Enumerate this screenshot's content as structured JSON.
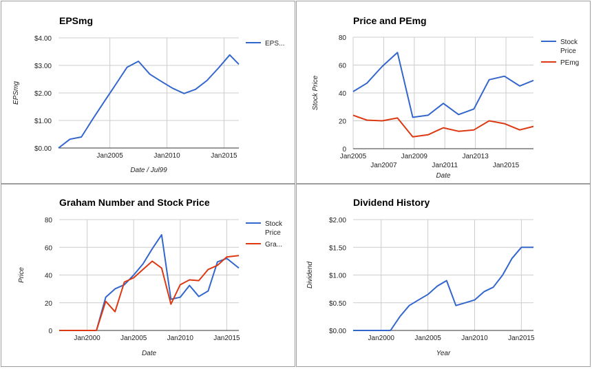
{
  "chart_data": [
    {
      "type": "line",
      "title": "EPSmg",
      "xlabel": "Date / Jul99",
      "ylabel": "EPSmg",
      "x_ticks": [
        "Jan2005",
        "Jan2010",
        "Jan2015"
      ],
      "y_ticks": [
        "$0.00",
        "$1.00",
        "$2.00",
        "$3.00",
        "$4.00"
      ],
      "xlim": [
        2000.5,
        2016.3
      ],
      "ylim": [
        0,
        4
      ],
      "grid": true,
      "legend_position": "right",
      "series": [
        {
          "name": "EPS...",
          "color": "#3366cc",
          "x": [
            2000.5,
            2001.5,
            2002.5,
            2003.5,
            2004.5,
            2005.5,
            2006.5,
            2007.5,
            2008.5,
            2009.5,
            2010.5,
            2011.5,
            2012.5,
            2013.5,
            2014.5,
            2015.5,
            2016.3
          ],
          "y": [
            0.0,
            0.32,
            0.4,
            1.05,
            1.68,
            2.3,
            2.93,
            3.15,
            2.68,
            2.42,
            2.17,
            1.98,
            2.13,
            2.45,
            2.9,
            3.38,
            3.04
          ]
        }
      ]
    },
    {
      "type": "line",
      "title": "Price and PEmg",
      "xlabel": "Date",
      "ylabel": "Stock Price",
      "x_ticks": [
        "Jan2005",
        "Jan2007",
        "Jan2009",
        "Jan2011",
        "Jan2013",
        "Jan2015"
      ],
      "y_ticks": [
        "0",
        "20",
        "40",
        "60",
        "80"
      ],
      "xlim": [
        2005,
        2016.8
      ],
      "ylim": [
        0,
        80
      ],
      "grid": true,
      "legend_position": "right",
      "series": [
        {
          "name": "Stock Price",
          "color": "#3366cc",
          "x": [
            2005,
            2005.9,
            2006.9,
            2007.9,
            2008.9,
            2009.9,
            2010.9,
            2011.9,
            2012.9,
            2013.9,
            2014.9,
            2015.9,
            2016.8
          ],
          "y": [
            41,
            47,
            59,
            69,
            22.5,
            24,
            32.5,
            24.5,
            28.5,
            49.5,
            52,
            45,
            49
          ]
        },
        {
          "name": "PEmg",
          "color": "#dc3912",
          "x": [
            2005,
            2005.9,
            2006.9,
            2007.9,
            2008.9,
            2009.9,
            2010.9,
            2011.9,
            2012.9,
            2013.9,
            2014.9,
            2015.9,
            2016.8
          ],
          "y": [
            24,
            20.5,
            20,
            22,
            8.5,
            10,
            15,
            12.5,
            13.5,
            20,
            18,
            13.5,
            16
          ]
        }
      ]
    },
    {
      "type": "line",
      "title": "Graham Number and Stock Price",
      "xlabel": "Date",
      "ylabel": "Price",
      "x_ticks": [
        "Jan2000",
        "Jan2005",
        "Jan2010",
        "Jan2015"
      ],
      "y_ticks": [
        "0",
        "20",
        "40",
        "60",
        "80"
      ],
      "xlim": [
        1997,
        2016.3
      ],
      "ylim": [
        0,
        80
      ],
      "grid": true,
      "legend_position": "right",
      "series": [
        {
          "name": "Stock Price",
          "color": "#3366cc",
          "x": [
            1997,
            1998,
            1999,
            2000,
            2001,
            2002,
            2003,
            2004,
            2005,
            2006,
            2007,
            2008,
            2009,
            2010,
            2011,
            2012,
            2013,
            2014,
            2015,
            2016.3
          ],
          "y": [
            0,
            0,
            0,
            0,
            0,
            24,
            30,
            33,
            40,
            48,
            59,
            69,
            22.5,
            24,
            32.5,
            24.5,
            28.5,
            49.5,
            52,
            45
          ]
        },
        {
          "name": "Gra...",
          "color": "#dc3912",
          "x": [
            1997,
            1998,
            1999,
            2000,
            2001,
            2002,
            2003,
            2004,
            2005,
            2006,
            2007,
            2008,
            2009,
            2010,
            2011,
            2012,
            2013,
            2014,
            2015,
            2016.3
          ],
          "y": [
            0,
            0,
            0,
            0,
            0,
            21,
            13.5,
            35,
            38,
            44,
            50,
            45,
            19,
            33,
            36.5,
            36,
            44,
            47,
            53,
            54
          ]
        }
      ]
    },
    {
      "type": "line",
      "title": "Dividend History",
      "xlabel": "Year",
      "ylabel": "Dividend",
      "x_ticks": [
        "Jan2000",
        "Jan2005",
        "Jan2010",
        "Jan2015"
      ],
      "y_ticks": [
        "$0.00",
        "$0.50",
        "$1.00",
        "$1.50",
        "$2.00"
      ],
      "xlim": [
        1997,
        2016.3
      ],
      "ylim": [
        0,
        2
      ],
      "grid": true,
      "legend_position": "none",
      "series": [
        {
          "color": "#3366cc",
          "x": [
            1997,
            1998,
            1999,
            2000,
            2001,
            2002,
            2003,
            2004,
            2005,
            2006,
            2007,
            2008,
            2009,
            2010,
            2011,
            2012,
            2013,
            2014,
            2015,
            2016.3
          ],
          "y": [
            0,
            0,
            0,
            0,
            0,
            0.25,
            0.45,
            0.55,
            0.65,
            0.8,
            0.9,
            0.45,
            0.5,
            0.55,
            0.7,
            0.78,
            1.0,
            1.3,
            1.5,
            1.5
          ]
        }
      ]
    }
  ]
}
